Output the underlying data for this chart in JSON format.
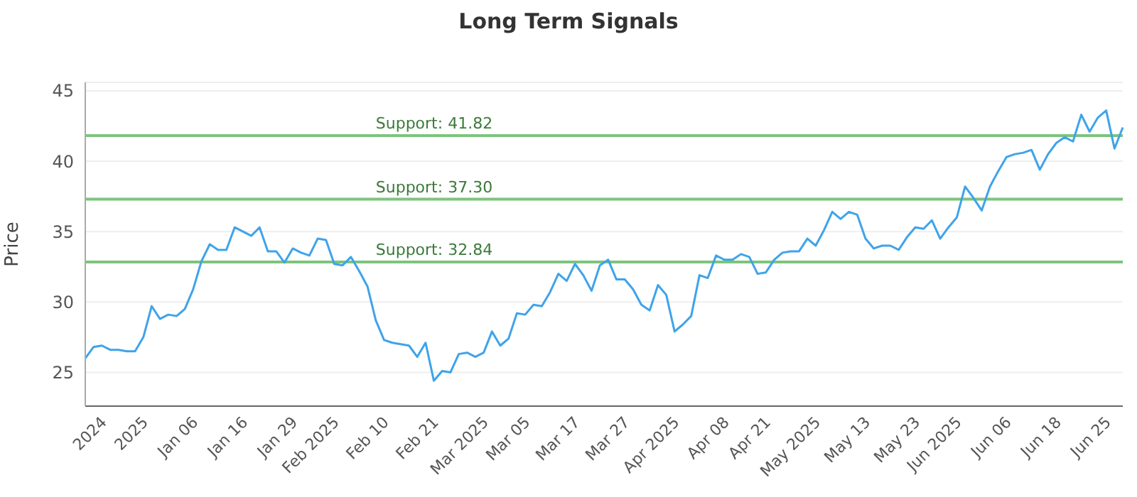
{
  "chart_data": {
    "type": "line",
    "title": "Long Term Signals",
    "ylabel": "Price",
    "categories": [
      null,
      null,
      "2024",
      null,
      null,
      null,
      null,
      "2025",
      null,
      null,
      null,
      null,
      null,
      "Jan 06",
      null,
      null,
      null,
      null,
      null,
      "Jan 16",
      null,
      null,
      null,
      null,
      null,
      "Jan 29",
      null,
      null,
      null,
      null,
      "Feb 2025",
      null,
      null,
      null,
      null,
      null,
      "Feb 10",
      null,
      null,
      null,
      null,
      null,
      "Feb 21",
      null,
      null,
      null,
      null,
      null,
      "Mar 2025",
      null,
      null,
      null,
      null,
      "Mar 05",
      null,
      null,
      null,
      null,
      null,
      "Mar 17",
      null,
      null,
      null,
      null,
      null,
      "Mar 27",
      null,
      null,
      null,
      null,
      null,
      "Apr 2025",
      null,
      null,
      null,
      null,
      null,
      "Apr 08",
      null,
      null,
      null,
      null,
      "Apr 21",
      null,
      null,
      null,
      null,
      null,
      "May 2025",
      null,
      null,
      null,
      null,
      null,
      "May 13",
      null,
      null,
      null,
      null,
      null,
      "May 23",
      null,
      null,
      null,
      null,
      "Jun 2025",
      null,
      null,
      null,
      null,
      null,
      "Jun 06",
      null,
      null,
      null,
      null,
      null,
      "Jun 18",
      null,
      null,
      null,
      null,
      null,
      "Jun 25",
      null,
      null
    ],
    "series": [
      {
        "color": "#3fa3ea",
        "values": [
          26.0,
          26.8,
          26.9,
          26.6,
          26.6,
          26.5,
          26.5,
          27.5,
          29.7,
          28.8,
          29.1,
          29.0,
          29.5,
          30.9,
          32.9,
          34.1,
          33.7,
          33.7,
          35.3,
          35.0,
          34.7,
          35.3,
          33.6,
          33.6,
          32.8,
          33.8,
          33.5,
          33.3,
          34.5,
          34.4,
          32.7,
          32.6,
          33.2,
          32.2,
          31.1,
          28.7,
          27.3,
          27.1,
          27.0,
          26.9,
          26.1,
          27.1,
          24.4,
          25.1,
          25.0,
          26.3,
          26.4,
          26.1,
          26.4,
          27.9,
          26.9,
          27.4,
          29.2,
          29.1,
          29.8,
          29.7,
          30.7,
          32.0,
          31.5,
          32.7,
          31.9,
          30.8,
          32.6,
          33.0,
          31.6,
          31.6,
          30.9,
          29.8,
          29.4,
          31.2,
          30.5,
          27.9,
          28.4,
          29.0,
          31.9,
          31.7,
          33.3,
          33.0,
          33.0,
          33.4,
          33.2,
          32.0,
          32.1,
          33.0,
          33.5,
          33.6,
          33.6,
          34.5,
          34.0,
          35.1,
          36.4,
          35.9,
          36.4,
          36.2,
          34.5,
          33.8,
          34.0,
          34.0,
          33.7,
          34.6,
          35.3,
          35.2,
          35.8,
          34.5,
          35.3,
          36.0,
          38.2,
          37.4,
          36.5,
          38.2,
          39.3,
          40.3,
          40.5,
          40.6,
          40.8,
          39.4,
          40.5,
          41.3,
          41.7,
          41.4,
          43.3,
          42.1,
          43.1,
          43.6,
          40.9,
          42.4
        ]
      }
    ],
    "ylim": [
      22.6,
      45.6
    ],
    "yticks": [
      25,
      30,
      35,
      40,
      45
    ],
    "grid": "y",
    "legend": false,
    "marker": "none",
    "line_style": "solid",
    "ref_lines": [
      {
        "axis": "y",
        "value": 41.82,
        "label": "Support: 41.82",
        "color": "#7dc47d"
      },
      {
        "axis": "y",
        "value": 37.3,
        "label": "Support: 37.30",
        "color": "#7dc47d"
      },
      {
        "axis": "y",
        "value": 32.84,
        "label": "Support: 32.84",
        "color": "#7dc47d"
      }
    ]
  }
}
